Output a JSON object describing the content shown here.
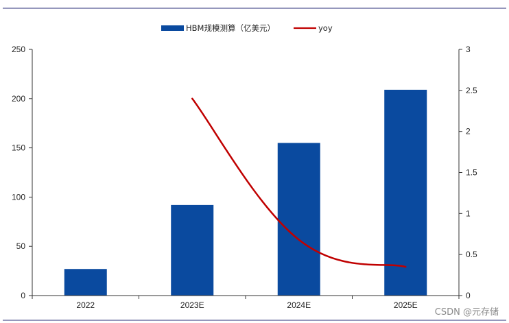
{
  "chart_data": {
    "type": "bar",
    "categories": [
      "2022",
      "2023E",
      "2024E",
      "2025E"
    ],
    "series": [
      {
        "name": "HBM规模测算（亿美元）",
        "type": "bar",
        "axis": "left",
        "color": "#0a4a9f",
        "values": [
          27,
          92,
          155,
          209
        ]
      },
      {
        "name": "yoy",
        "type": "line",
        "axis": "right",
        "color": "#c00000",
        "values": [
          null,
          2.4,
          0.68,
          0.35
        ]
      }
    ],
    "y_left": {
      "min": 0,
      "max": 250,
      "ticks": [
        "0",
        "50",
        "100",
        "150",
        "200",
        "250"
      ]
    },
    "y_right": {
      "min": 0,
      "max": 3,
      "ticks": [
        "0",
        "0.5",
        "1",
        "1.5",
        "2",
        "2.5",
        "3"
      ]
    },
    "legend_position": "top-center",
    "grid": false
  },
  "watermark": "CSDN @元存储",
  "colors": {
    "frame_line": "#2b2f7a",
    "axis": "#333333"
  }
}
